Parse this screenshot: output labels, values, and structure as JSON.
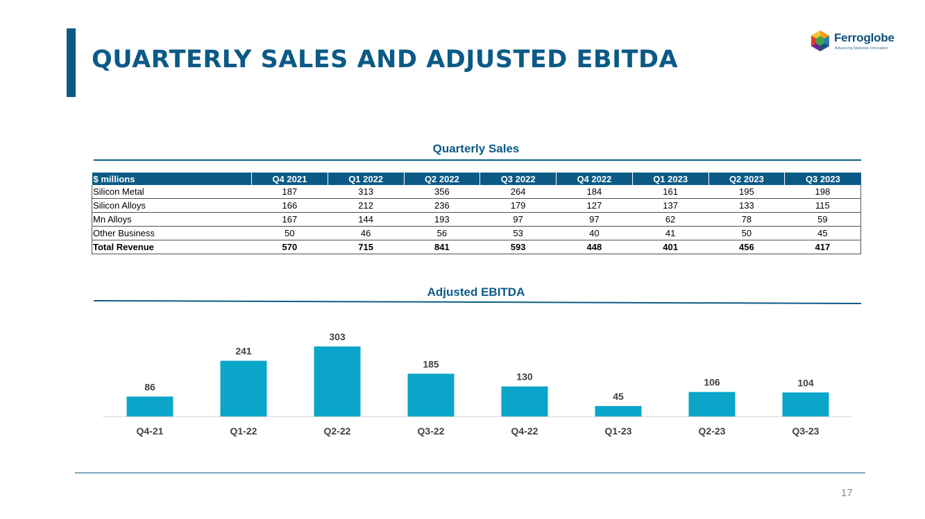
{
  "slide": {
    "title": "QUARTERLY SALES AND ADJUSTED EBITDA",
    "page_number": "17",
    "accent_color": "#0b5a86"
  },
  "logo": {
    "name": "Ferroglobe",
    "tagline": "Advancing Materials Innovation"
  },
  "sales_section": {
    "title": "Quarterly Sales",
    "headers": [
      "$ millions",
      "Q4 2021",
      "Q1 2022",
      "Q2 2022",
      "Q3 2022",
      "Q4 2022",
      "Q1 2023",
      "Q2 2023",
      "Q3 2023"
    ],
    "rows": [
      [
        "Silicon Metal",
        "187",
        "313",
        "356",
        "264",
        "184",
        "161",
        "195",
        "198"
      ],
      [
        "Silicon Alloys",
        "166",
        "212",
        "236",
        "179",
        "127",
        "137",
        "133",
        "115"
      ],
      [
        "Mn Alloys",
        "167",
        "144",
        "193",
        "97",
        "97",
        "62",
        "78",
        "59"
      ],
      [
        "Other Business",
        "50",
        "46",
        "56",
        "53",
        "40",
        "41",
        "50",
        "45"
      ],
      [
        "Total Revenue",
        "570",
        "715",
        "841",
        "593",
        "448",
        "401",
        "456",
        "417"
      ]
    ]
  },
  "ebitda_section": {
    "title": "Adjusted EBITDA"
  },
  "chart_data": [
    {
      "type": "table",
      "title": "Quarterly Sales",
      "columns": [
        "$ millions",
        "Q4 2021",
        "Q1 2022",
        "Q2 2022",
        "Q3 2022",
        "Q4 2022",
        "Q1 2023",
        "Q2 2023",
        "Q3 2023"
      ],
      "rows": [
        [
          "Silicon Metal",
          187,
          313,
          356,
          264,
          184,
          161,
          195,
          198
        ],
        [
          "Silicon Alloys",
          166,
          212,
          236,
          179,
          127,
          137,
          133,
          115
        ],
        [
          "Mn Alloys",
          167,
          144,
          193,
          97,
          97,
          62,
          78,
          59
        ],
        [
          "Other Business",
          50,
          46,
          56,
          53,
          40,
          41,
          50,
          45
        ],
        [
          "Total Revenue",
          570,
          715,
          841,
          593,
          448,
          401,
          456,
          417
        ]
      ]
    },
    {
      "type": "bar",
      "title": "Adjusted EBITDA",
      "categories": [
        "Q4-21",
        "Q1-22",
        "Q2-22",
        "Q3-22",
        "Q4-22",
        "Q1-23",
        "Q2-23",
        "Q3-23"
      ],
      "values": [
        86,
        241,
        303,
        185,
        130,
        45,
        106,
        104
      ],
      "xlabel": "",
      "ylabel": "",
      "ylim": [
        0,
        303
      ],
      "bar_color": "#0aa5c8",
      "data_labels": true,
      "grid": false
    }
  ]
}
